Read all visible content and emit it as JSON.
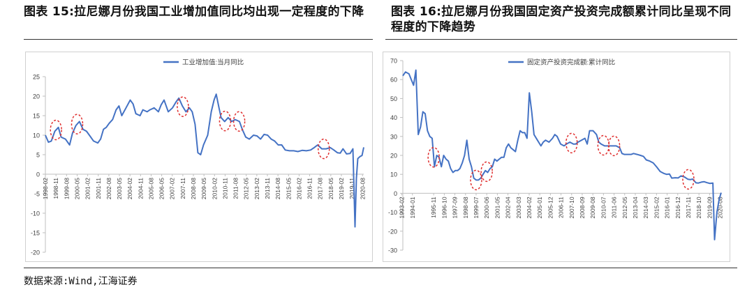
{
  "titles": {
    "left": "图表 15:拉尼娜月份我国工业增加值同比均出现一定程度的下降",
    "right": "图表 16:拉尼娜月份我国固定资产投资完成额累计同比呈现不同程度的下降趋势"
  },
  "source": "数据来源:Wind,江海证券",
  "colors": {
    "line": "#4472C4",
    "marker": "#E03030",
    "axis": "#BFBFBF",
    "text": "#404040"
  },
  "chart_data": [
    {
      "type": "line",
      "legend_position": "top",
      "series": [
        {
          "name": "工业增加值:当月同比",
          "color": "#4472C4"
        }
      ],
      "ylim": [
        -20,
        25
      ],
      "yticks": [
        -20,
        -15,
        -10,
        -5,
        0,
        5,
        10,
        15,
        20,
        25
      ],
      "xlim": [
        1998.08,
        2020.67
      ],
      "xticks": [
        "1998-02",
        "1998-11",
        "1999-08",
        "2000-05",
        "2001-02",
        "2001-11",
        "2002-08",
        "2003-05",
        "2004-02",
        "2004-11",
        "2005-08",
        "2006-05",
        "2007-02",
        "2007-11",
        "2008-08",
        "2009-05",
        "2010-02",
        "2010-11",
        "2011-08",
        "2012-05",
        "2013-02",
        "2013-11",
        "2014-08",
        "2015-05",
        "2016-02",
        "2016-11",
        "2017-08",
        "2018-05",
        "2019-02",
        "2019-11",
        "2020-08"
      ],
      "points": [
        [
          1998.08,
          10
        ],
        [
          1998.3,
          8.2
        ],
        [
          1998.5,
          8.5
        ],
        [
          1998.75,
          11
        ],
        [
          1999,
          12
        ],
        [
          1999.2,
          9.5
        ],
        [
          1999.5,
          9
        ],
        [
          1999.8,
          7.5
        ],
        [
          2000,
          10.5
        ],
        [
          2000.25,
          12.5
        ],
        [
          2000.5,
          13.5
        ],
        [
          2000.75,
          11.5
        ],
        [
          2001,
          11
        ],
        [
          2001.2,
          10
        ],
        [
          2001.5,
          8.5
        ],
        [
          2001.8,
          8
        ],
        [
          2002,
          9
        ],
        [
          2002.2,
          11.5
        ],
        [
          2002.4,
          12
        ],
        [
          2002.6,
          13
        ],
        [
          2002.85,
          14
        ],
        [
          2003.1,
          16.5
        ],
        [
          2003.3,
          17.5
        ],
        [
          2003.5,
          15
        ],
        [
          2003.8,
          17
        ],
        [
          2004.1,
          19
        ],
        [
          2004.3,
          18
        ],
        [
          2004.5,
          15.5
        ],
        [
          2004.8,
          15
        ],
        [
          2005,
          16.5
        ],
        [
          2005.3,
          16
        ],
        [
          2005.5,
          16.5
        ],
        [
          2005.8,
          17
        ],
        [
          2006.1,
          16
        ],
        [
          2006.3,
          17.8
        ],
        [
          2006.5,
          19
        ],
        [
          2006.8,
          16
        ],
        [
          2007.1,
          17
        ],
        [
          2007.35,
          18.5
        ],
        [
          2007.55,
          19.5
        ],
        [
          2007.8,
          17.5
        ],
        [
          2008.05,
          16
        ],
        [
          2008.3,
          17
        ],
        [
          2008.5,
          16
        ],
        [
          2008.7,
          12.8
        ],
        [
          2008.9,
          5.5
        ],
        [
          2009.1,
          5
        ],
        [
          2009.3,
          7.5
        ],
        [
          2009.6,
          10
        ],
        [
          2009.85,
          16
        ],
        [
          2010.05,
          19
        ],
        [
          2010.2,
          20.5
        ],
        [
          2010.4,
          17
        ],
        [
          2010.55,
          14.5
        ],
        [
          2010.8,
          13.5
        ],
        [
          2011.05,
          14.5
        ],
        [
          2011.3,
          13.5
        ],
        [
          2011.55,
          14
        ],
        [
          2011.85,
          13.5
        ],
        [
          2012.05,
          11.5
        ],
        [
          2012.3,
          9.5
        ],
        [
          2012.55,
          9
        ],
        [
          2012.85,
          10
        ],
        [
          2013.1,
          9.8
        ],
        [
          2013.35,
          9
        ],
        [
          2013.6,
          10.2
        ],
        [
          2013.85,
          10
        ],
        [
          2014.1,
          9
        ],
        [
          2014.35,
          8.5
        ],
        [
          2014.6,
          7.5
        ],
        [
          2014.85,
          7.5
        ],
        [
          2015.1,
          6.2
        ],
        [
          2015.4,
          6
        ],
        [
          2015.7,
          6
        ],
        [
          2016.0,
          5.8
        ],
        [
          2016.3,
          6.1
        ],
        [
          2016.6,
          6.0
        ],
        [
          2016.9,
          6.2
        ],
        [
          2017.15,
          6.8
        ],
        [
          2017.4,
          7.5
        ],
        [
          2017.7,
          6.5
        ],
        [
          2018.0,
          6.5
        ],
        [
          2018.3,
          6.8
        ],
        [
          2018.55,
          6.2
        ],
        [
          2018.8,
          5.5
        ],
        [
          2019.0,
          5.4
        ],
        [
          2019.2,
          6.5
        ],
        [
          2019.45,
          5.2
        ],
        [
          2019.7,
          5.3
        ],
        [
          2019.9,
          6.5
        ],
        [
          2020.05,
          -13.5
        ],
        [
          2020.15,
          -1
        ],
        [
          2020.25,
          4
        ],
        [
          2020.4,
          4.5
        ],
        [
          2020.55,
          4.8
        ],
        [
          2020.67,
          6.9
        ]
      ],
      "highlights": [
        "1998-11",
        "2000-05",
        "2007-11",
        "2010-11",
        "2011-11",
        "2017-11"
      ]
    },
    {
      "type": "line",
      "legend_position": "top",
      "series": [
        {
          "name": "固定资产投资完成额:累计同比",
          "color": "#4472C4"
        }
      ],
      "ylim": [
        -30,
        70
      ],
      "yticks": [
        -30,
        -20,
        -10,
        0,
        10,
        20,
        30,
        40,
        50,
        60,
        70
      ],
      "xlim": [
        1993.17,
        2020.67
      ],
      "xticks": [
        "1993-02",
        "1994-01",
        "1995-11",
        "1996-10",
        "1997-09",
        "1998-08",
        "1999-07",
        "2000-06",
        "2001-05",
        "2002-04",
        "2003-03",
        "2004-02",
        "2005-01",
        "2005-12",
        "2006-11",
        "2007-10",
        "2008-09",
        "2009-08",
        "2010-07",
        "2011-06",
        "2012-05",
        "2013-04",
        "2014-03",
        "2015-02",
        "2016-01",
        "2016-12",
        "2017-11",
        "2018-10",
        "2019-09",
        "2020-08"
      ],
      "points": [
        [
          1993.17,
          62
        ],
        [
          1993.4,
          64
        ],
        [
          1993.7,
          63
        ],
        [
          1993.9,
          60
        ],
        [
          1994.1,
          57
        ],
        [
          1994.3,
          65
        ],
        [
          1994.5,
          31
        ],
        [
          1994.7,
          35
        ],
        [
          1994.9,
          43
        ],
        [
          1995.1,
          42
        ],
        [
          1995.3,
          33
        ],
        [
          1995.5,
          30
        ],
        [
          1995.7,
          29
        ],
        [
          1995.9,
          14
        ],
        [
          1996.1,
          20
        ],
        [
          1996.3,
          19
        ],
        [
          1996.5,
          14
        ],
        [
          1996.7,
          20
        ],
        [
          1996.9,
          18
        ],
        [
          1997.1,
          17
        ],
        [
          1997.3,
          13
        ],
        [
          1997.5,
          11
        ],
        [
          1997.7,
          12
        ],
        [
          1997.9,
          12
        ],
        [
          1998.1,
          13
        ],
        [
          1998.3,
          16
        ],
        [
          1998.5,
          20
        ],
        [
          1998.7,
          28
        ],
        [
          1998.9,
          18
        ],
        [
          1999.1,
          14
        ],
        [
          1999.3,
          8
        ],
        [
          1999.5,
          7
        ],
        [
          1999.7,
          7
        ],
        [
          1999.9,
          8
        ],
        [
          2000.1,
          10
        ],
        [
          2000.3,
          12
        ],
        [
          2000.5,
          11
        ],
        [
          2000.7,
          13
        ],
        [
          2000.9,
          14
        ],
        [
          2001.1,
          18
        ],
        [
          2001.3,
          17
        ],
        [
          2001.5,
          18
        ],
        [
          2001.7,
          19
        ],
        [
          2001.9,
          19
        ],
        [
          2002.1,
          24
        ],
        [
          2002.3,
          26
        ],
        [
          2002.5,
          24
        ],
        [
          2002.7,
          23
        ],
        [
          2002.9,
          22
        ],
        [
          2003.1,
          28
        ],
        [
          2003.3,
          33
        ],
        [
          2003.5,
          32
        ],
        [
          2003.7,
          32
        ],
        [
          2003.9,
          29
        ],
        [
          2004.1,
          53
        ],
        [
          2004.3,
          43
        ],
        [
          2004.5,
          31
        ],
        [
          2004.8,
          28
        ],
        [
          2005.1,
          25
        ],
        [
          2005.3,
          27
        ],
        [
          2005.5,
          28
        ],
        [
          2005.8,
          27
        ],
        [
          2006.1,
          29
        ],
        [
          2006.3,
          31
        ],
        [
          2006.5,
          30
        ],
        [
          2006.8,
          26
        ],
        [
          2007.1,
          25
        ],
        [
          2007.3,
          26
        ],
        [
          2007.6,
          27
        ],
        [
          2007.9,
          26
        ],
        [
          2008.1,
          26
        ],
        [
          2008.3,
          27
        ],
        [
          2008.6,
          28
        ],
        [
          2008.9,
          29
        ],
        [
          2009.1,
          26
        ],
        [
          2009.3,
          33
        ],
        [
          2009.6,
          33
        ],
        [
          2009.9,
          31
        ],
        [
          2010.1,
          27
        ],
        [
          2010.3,
          26
        ],
        [
          2010.6,
          25
        ],
        [
          2010.9,
          25
        ],
        [
          2011.1,
          25
        ],
        [
          2011.3,
          25
        ],
        [
          2011.6,
          25
        ],
        [
          2011.9,
          24
        ],
        [
          2012.1,
          21
        ],
        [
          2012.3,
          20.5
        ],
        [
          2012.6,
          20.5
        ],
        [
          2012.9,
          20.5
        ],
        [
          2013.1,
          21
        ],
        [
          2013.4,
          20.5
        ],
        [
          2013.7,
          20
        ],
        [
          2013.95,
          19.5
        ],
        [
          2014.2,
          17.6
        ],
        [
          2014.5,
          17
        ],
        [
          2014.8,
          16
        ],
        [
          2015.1,
          13.9
        ],
        [
          2015.4,
          11.5
        ],
        [
          2015.7,
          10.5
        ],
        [
          2015.95,
          10
        ],
        [
          2016.2,
          10.2
        ],
        [
          2016.4,
          8
        ],
        [
          2016.7,
          8.2
        ],
        [
          2016.95,
          8.1
        ],
        [
          2017.2,
          9.2
        ],
        [
          2017.5,
          8.6
        ],
        [
          2017.8,
          7.4
        ],
        [
          2018.0,
          7.2
        ],
        [
          2018.2,
          7.5
        ],
        [
          2018.5,
          5.5
        ],
        [
          2018.7,
          5.4
        ],
        [
          2018.95,
          5.9
        ],
        [
          2019.2,
          6.1
        ],
        [
          2019.45,
          5.6
        ],
        [
          2019.7,
          5.2
        ],
        [
          2019.95,
          5.4
        ],
        [
          2020.1,
          -24.5
        ],
        [
          2020.3,
          -10
        ],
        [
          2020.5,
          -3
        ],
        [
          2020.67,
          0.3
        ]
      ],
      "highlights": [
        "1995-11",
        "1999-07",
        "2000-06",
        "2007-10",
        "2010-07",
        "2011-06",
        "2017-11"
      ]
    }
  ]
}
